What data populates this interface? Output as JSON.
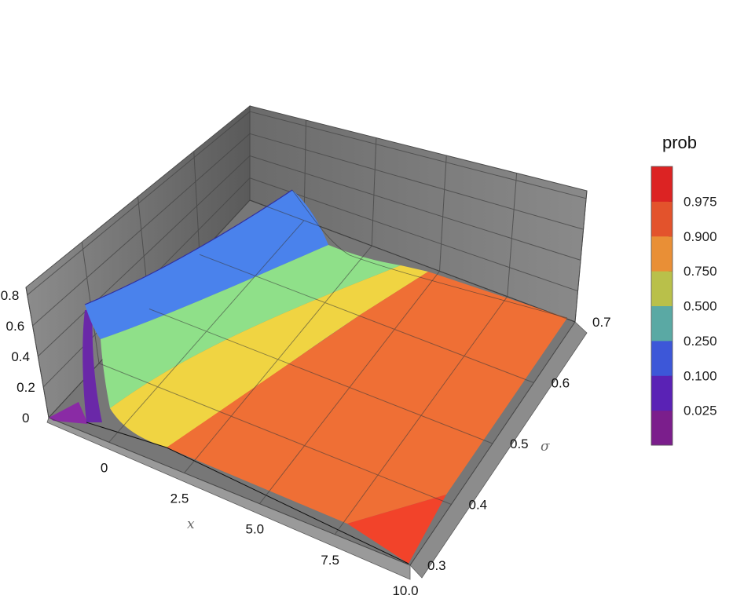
{
  "chart_data": {
    "type": "surface3d",
    "title": "",
    "xlabel": "x",
    "ylabel": "σ",
    "zlabel": "",
    "xlim": [
      -2.0,
      10.0
    ],
    "ylim": [
      0.3,
      0.7
    ],
    "zlim": [
      0,
      0.85
    ],
    "x_ticks": [
      "0",
      "2.5",
      "5.0",
      "7.5",
      "10.0"
    ],
    "y_ticks": [
      "0.3",
      "0.4",
      "0.5",
      "0.6",
      "0.7"
    ],
    "z_ticks": [
      "0",
      "0.2",
      "0.4",
      "0.6",
      "0.8"
    ],
    "grid": true,
    "surface": "lognormal density of x with log-scale σ, colored by cumulative probability",
    "colorbar": {
      "title": "prob",
      "placement": "right",
      "levels": [
        {
          "label": "0.025",
          "color": "#7b1e8c"
        },
        {
          "label": "0.100",
          "color": "#5a22b5"
        },
        {
          "label": "0.250",
          "color": "#3d57d8"
        },
        {
          "label": "0.500",
          "color": "#5aa9a4"
        },
        {
          "label": "0.750",
          "color": "#b9c04a"
        },
        {
          "label": "0.900",
          "color": "#e98f36"
        },
        {
          "label": "0.975",
          "color": "#e3532c"
        },
        {
          "label": "",
          "color": "#dc2323"
        }
      ]
    }
  }
}
